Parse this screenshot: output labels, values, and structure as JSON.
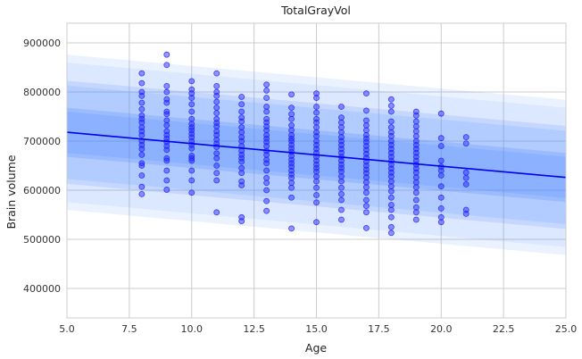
{
  "chart_data": {
    "type": "scatter",
    "title": "TotalGrayVol",
    "xlabel": "Age",
    "ylabel": "Brain volume",
    "xlim": [
      5.0,
      25.0
    ],
    "ylim": [
      340000,
      940000
    ],
    "xticks": [
      5.0,
      7.5,
      10.0,
      12.5,
      15.0,
      17.5,
      20.0,
      22.5,
      25.0
    ],
    "xtick_labels": [
      "5.0",
      "7.5",
      "10.0",
      "12.5",
      "15.0",
      "17.5",
      "20.0",
      "22.5",
      "25.0"
    ],
    "yticks": [
      400000,
      500000,
      600000,
      700000,
      800000,
      900000
    ],
    "ytick_labels": [
      "400000",
      "500000",
      "600000",
      "700000",
      "800000",
      "900000"
    ],
    "grid": true,
    "colors": {
      "line": "#0000ee",
      "points": "#1f1fff",
      "band": "#4d88ff",
      "background": "#ffffff",
      "grid": "#cccccc",
      "frame": "#cccccc"
    },
    "fit_line": {
      "x": [
        5,
        25
      ],
      "y": [
        718000,
        626000
      ]
    },
    "bands": [
      {
        "offset": 46000,
        "width": 4000,
        "opacity": 0.42
      },
      {
        "offset": 100000,
        "width": 5000,
        "opacity": 0.3
      },
      {
        "offset": 150000,
        "width": 8000,
        "opacity": 0.2
      }
    ],
    "series": [
      {
        "points": [
          [
            8,
            838000
          ],
          [
            8,
            818000
          ],
          [
            8,
            800000
          ],
          [
            8,
            792000
          ],
          [
            8,
            778000
          ],
          [
            8,
            765000
          ],
          [
            8,
            752000
          ],
          [
            8,
            745000
          ],
          [
            8,
            738000
          ],
          [
            8,
            728000
          ],
          [
            8,
            720000
          ],
          [
            8,
            712000
          ],
          [
            8,
            700000
          ],
          [
            8,
            692000
          ],
          [
            8,
            684000
          ],
          [
            8,
            672000
          ],
          [
            8,
            655000
          ],
          [
            8,
            650000
          ],
          [
            8,
            630000
          ],
          [
            8,
            607000
          ],
          [
            8,
            592000
          ],
          [
            9,
            876000
          ],
          [
            9,
            855000
          ],
          [
            9,
            812000
          ],
          [
            9,
            800000
          ],
          [
            9,
            785000
          ],
          [
            9,
            778000
          ],
          [
            9,
            760000
          ],
          [
            9,
            755000
          ],
          [
            9,
            742000
          ],
          [
            9,
            732000
          ],
          [
            9,
            720000
          ],
          [
            9,
            712000
          ],
          [
            9,
            705000
          ],
          [
            9,
            698000
          ],
          [
            9,
            690000
          ],
          [
            9,
            682000
          ],
          [
            9,
            665000
          ],
          [
            9,
            660000
          ],
          [
            9,
            640000
          ],
          [
            9,
            620000
          ],
          [
            9,
            601000
          ],
          [
            10,
            822000
          ],
          [
            10,
            805000
          ],
          [
            10,
            797000
          ],
          [
            10,
            788000
          ],
          [
            10,
            775000
          ],
          [
            10,
            760000
          ],
          [
            10,
            745000
          ],
          [
            10,
            735000
          ],
          [
            10,
            728000
          ],
          [
            10,
            722000
          ],
          [
            10,
            715000
          ],
          [
            10,
            708000
          ],
          [
            10,
            700000
          ],
          [
            10,
            692000
          ],
          [
            10,
            685000
          ],
          [
            10,
            670000
          ],
          [
            10,
            665000
          ],
          [
            10,
            660000
          ],
          [
            10,
            640000
          ],
          [
            10,
            620000
          ],
          [
            10,
            595000
          ],
          [
            11,
            838000
          ],
          [
            11,
            812000
          ],
          [
            11,
            800000
          ],
          [
            11,
            792000
          ],
          [
            11,
            780000
          ],
          [
            11,
            768000
          ],
          [
            11,
            757000
          ],
          [
            11,
            745000
          ],
          [
            11,
            737000
          ],
          [
            11,
            730000
          ],
          [
            11,
            720000
          ],
          [
            11,
            712000
          ],
          [
            11,
            703000
          ],
          [
            11,
            695000
          ],
          [
            11,
            688000
          ],
          [
            11,
            675000
          ],
          [
            11,
            665000
          ],
          [
            11,
            650000
          ],
          [
            11,
            635000
          ],
          [
            11,
            620000
          ],
          [
            11,
            555000
          ],
          [
            12,
            790000
          ],
          [
            12,
            775000
          ],
          [
            12,
            760000
          ],
          [
            12,
            748000
          ],
          [
            12,
            740000
          ],
          [
            12,
            728000
          ],
          [
            12,
            718000
          ],
          [
            12,
            708000
          ],
          [
            12,
            700000
          ],
          [
            12,
            690000
          ],
          [
            12,
            680000
          ],
          [
            12,
            672000
          ],
          [
            12,
            665000
          ],
          [
            12,
            658000
          ],
          [
            12,
            645000
          ],
          [
            12,
            635000
          ],
          [
            12,
            618000
          ],
          [
            12,
            610000
          ],
          [
            12,
            545000
          ],
          [
            12,
            537000
          ],
          [
            13,
            815000
          ],
          [
            13,
            803000
          ],
          [
            13,
            788000
          ],
          [
            13,
            770000
          ],
          [
            13,
            760000
          ],
          [
            13,
            745000
          ],
          [
            13,
            738000
          ],
          [
            13,
            730000
          ],
          [
            13,
            722000
          ],
          [
            13,
            712000
          ],
          [
            13,
            705000
          ],
          [
            13,
            698000
          ],
          [
            13,
            690000
          ],
          [
            13,
            680000
          ],
          [
            13,
            672000
          ],
          [
            13,
            662000
          ],
          [
            13,
            655000
          ],
          [
            13,
            640000
          ],
          [
            13,
            625000
          ],
          [
            13,
            615000
          ],
          [
            13,
            600000
          ],
          [
            13,
            578000
          ],
          [
            13,
            558000
          ],
          [
            14,
            795000
          ],
          [
            14,
            768000
          ],
          [
            14,
            755000
          ],
          [
            14,
            745000
          ],
          [
            14,
            732000
          ],
          [
            14,
            722000
          ],
          [
            14,
            712000
          ],
          [
            14,
            705000
          ],
          [
            14,
            700000
          ],
          [
            14,
            692000
          ],
          [
            14,
            685000
          ],
          [
            14,
            678000
          ],
          [
            14,
            670000
          ],
          [
            14,
            662000
          ],
          [
            14,
            655000
          ],
          [
            14,
            648000
          ],
          [
            14,
            640000
          ],
          [
            14,
            632000
          ],
          [
            14,
            625000
          ],
          [
            14,
            615000
          ],
          [
            14,
            605000
          ],
          [
            14,
            585000
          ],
          [
            14,
            522000
          ],
          [
            15,
            797000
          ],
          [
            15,
            788000
          ],
          [
            15,
            770000
          ],
          [
            15,
            758000
          ],
          [
            15,
            745000
          ],
          [
            15,
            738000
          ],
          [
            15,
            728000
          ],
          [
            15,
            718000
          ],
          [
            15,
            710000
          ],
          [
            15,
            700000
          ],
          [
            15,
            692000
          ],
          [
            15,
            684000
          ],
          [
            15,
            676000
          ],
          [
            15,
            668000
          ],
          [
            15,
            660000
          ],
          [
            15,
            652000
          ],
          [
            15,
            645000
          ],
          [
            15,
            638000
          ],
          [
            15,
            628000
          ],
          [
            15,
            618000
          ],
          [
            15,
            605000
          ],
          [
            15,
            590000
          ],
          [
            15,
            575000
          ],
          [
            15,
            535000
          ],
          [
            16,
            770000
          ],
          [
            16,
            748000
          ],
          [
            16,
            738000
          ],
          [
            16,
            728000
          ],
          [
            16,
            718000
          ],
          [
            16,
            708000
          ],
          [
            16,
            700000
          ],
          [
            16,
            692000
          ],
          [
            16,
            684000
          ],
          [
            16,
            676000
          ],
          [
            16,
            668000
          ],
          [
            16,
            660000
          ],
          [
            16,
            652000
          ],
          [
            16,
            645000
          ],
          [
            16,
            638000
          ],
          [
            16,
            628000
          ],
          [
            16,
            618000
          ],
          [
            16,
            605000
          ],
          [
            16,
            592000
          ],
          [
            16,
            580000
          ],
          [
            16,
            560000
          ],
          [
            16,
            540000
          ],
          [
            17,
            797000
          ],
          [
            17,
            762000
          ],
          [
            17,
            742000
          ],
          [
            17,
            732000
          ],
          [
            17,
            722000
          ],
          [
            17,
            712000
          ],
          [
            17,
            705000
          ],
          [
            17,
            698000
          ],
          [
            17,
            690000
          ],
          [
            17,
            682000
          ],
          [
            17,
            674000
          ],
          [
            17,
            666000
          ],
          [
            17,
            658000
          ],
          [
            17,
            650000
          ],
          [
            17,
            642000
          ],
          [
            17,
            635000
          ],
          [
            17,
            626000
          ],
          [
            17,
            616000
          ],
          [
            17,
            606000
          ],
          [
            17,
            595000
          ],
          [
            17,
            580000
          ],
          [
            17,
            568000
          ],
          [
            17,
            555000
          ],
          [
            17,
            523000
          ],
          [
            18,
            785000
          ],
          [
            18,
            772000
          ],
          [
            18,
            760000
          ],
          [
            18,
            740000
          ],
          [
            18,
            728000
          ],
          [
            18,
            718000
          ],
          [
            18,
            710000
          ],
          [
            18,
            700000
          ],
          [
            18,
            692000
          ],
          [
            18,
            684000
          ],
          [
            18,
            676000
          ],
          [
            18,
            668000
          ],
          [
            18,
            660000
          ],
          [
            18,
            652000
          ],
          [
            18,
            644000
          ],
          [
            18,
            636000
          ],
          [
            18,
            628000
          ],
          [
            18,
            618000
          ],
          [
            18,
            608000
          ],
          [
            18,
            598000
          ],
          [
            18,
            585000
          ],
          [
            18,
            570000
          ],
          [
            18,
            560000
          ],
          [
            18,
            545000
          ],
          [
            18,
            525000
          ],
          [
            18,
            513000
          ],
          [
            19,
            760000
          ],
          [
            19,
            752000
          ],
          [
            19,
            740000
          ],
          [
            19,
            730000
          ],
          [
            19,
            720000
          ],
          [
            19,
            710000
          ],
          [
            19,
            700000
          ],
          [
            19,
            692000
          ],
          [
            19,
            684000
          ],
          [
            19,
            676000
          ],
          [
            19,
            668000
          ],
          [
            19,
            660000
          ],
          [
            19,
            652000
          ],
          [
            19,
            644000
          ],
          [
            19,
            636000
          ],
          [
            19,
            626000
          ],
          [
            19,
            616000
          ],
          [
            19,
            606000
          ],
          [
            19,
            595000
          ],
          [
            19,
            580000
          ],
          [
            19,
            565000
          ],
          [
            19,
            555000
          ],
          [
            19,
            540000
          ],
          [
            20,
            756000
          ],
          [
            20,
            706000
          ],
          [
            20,
            690000
          ],
          [
            20,
            660000
          ],
          [
            20,
            648000
          ],
          [
            20,
            640000
          ],
          [
            20,
            630000
          ],
          [
            20,
            608000
          ],
          [
            20,
            585000
          ],
          [
            20,
            563000
          ],
          [
            20,
            545000
          ],
          [
            20,
            535000
          ],
          [
            21,
            708000
          ],
          [
            21,
            695000
          ],
          [
            21,
            636000
          ],
          [
            21,
            625000
          ],
          [
            21,
            612000
          ],
          [
            21,
            560000
          ],
          [
            21,
            552000
          ]
        ]
      }
    ]
  }
}
